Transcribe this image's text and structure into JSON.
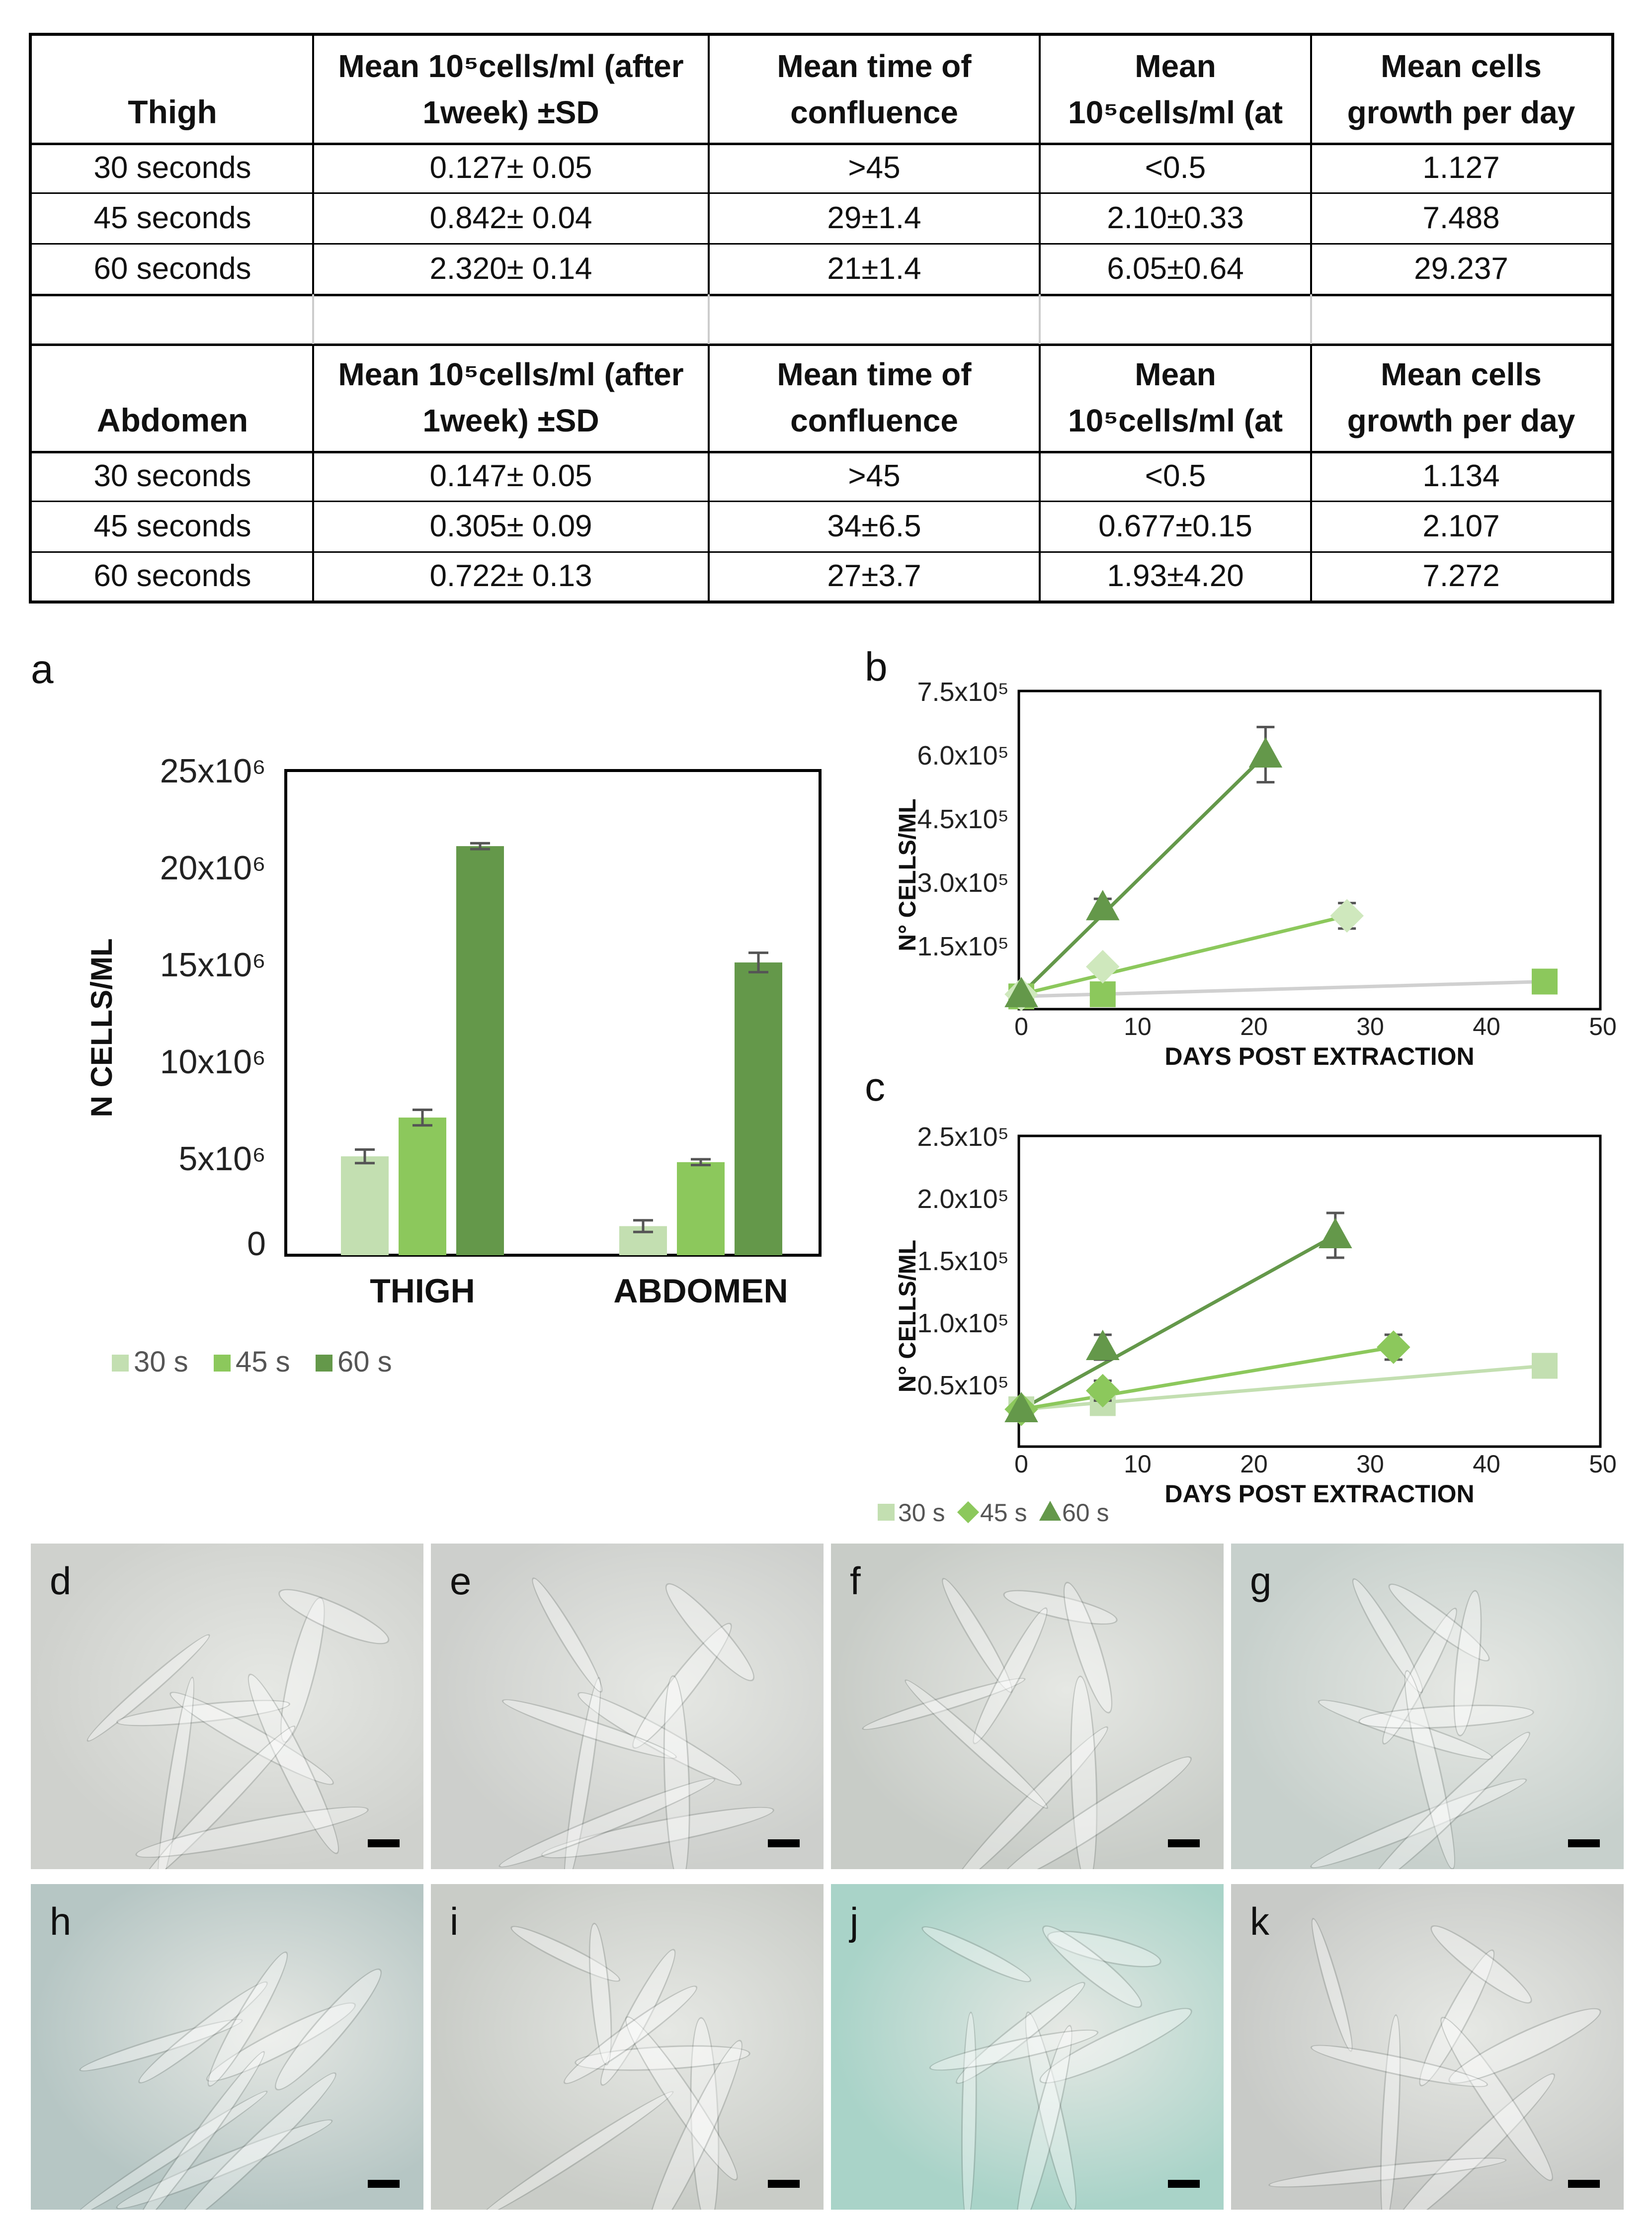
{
  "table": {
    "thigh": {
      "header": [
        "Thigh",
        "Mean 10⁵cells/ml (after\n1week) ±SD",
        "Mean time of\nconfluence",
        "Mean\n10⁵cells/ml (at",
        "Mean cells\ngrowth per day"
      ],
      "rows": [
        [
          "30 seconds",
          "0.127± 0.05",
          ">45",
          "<0.5",
          "1.127"
        ],
        [
          "45 seconds",
          "0.842± 0.04",
          "29±1.4",
          "2.10±0.33",
          "7.488"
        ],
        [
          "60 seconds",
          "2.320± 0.14",
          "21±1.4",
          "6.05±0.64",
          "29.237"
        ]
      ]
    },
    "abdomen": {
      "header": [
        "Abdomen",
        "Mean 10⁵cells/ml (after\n1week) ±SD",
        "Mean time of\nconfluence",
        "Mean\n10⁵cells/ml (at",
        "Mean cells\ngrowth per day"
      ],
      "rows": [
        [
          "30 seconds",
          "0.147± 0.05",
          ">45",
          "<0.5",
          "1.134"
        ],
        [
          "45 seconds",
          "0.305± 0.09",
          "34±6.5",
          "0.677±0.15",
          "2.107"
        ],
        [
          "60 seconds",
          "0.722± 0.13",
          "27±3.7",
          "1.93±4.20",
          "7.272"
        ]
      ]
    }
  },
  "panel_letters": {
    "a": "a",
    "b": "b",
    "c": "c"
  },
  "colors": {
    "s30": "#c3dfb1",
    "s45": "#8cc85c",
    "s60": "#64984a",
    "grey_line": "#d0d0d0"
  },
  "chart_data": [
    {
      "type": "bar",
      "panel": "a",
      "ylabel": "N CELLS/ML",
      "categories": [
        "THIGH",
        "ABDOMEN"
      ],
      "series": [
        {
          "name": "30 s",
          "values": [
            5.1,
            1.5
          ],
          "errors": [
            0.35,
            0.3
          ]
        },
        {
          "name": "45 s",
          "values": [
            7.1,
            4.8
          ],
          "errors": [
            0.4,
            0.15
          ]
        },
        {
          "name": "60 s",
          "values": [
            21.1,
            15.1
          ],
          "errors": [
            0.15,
            0.5
          ]
        }
      ],
      "ylim": [
        0,
        25
      ],
      "yticks": [
        "0",
        "5x10⁶",
        "10x10⁶",
        "15x10⁶",
        "20x10⁶",
        "25x10⁶"
      ],
      "legend": "bottom",
      "legend_entries": [
        "30 s",
        "45 s",
        "60 s"
      ]
    },
    {
      "type": "scatter",
      "panel": "b",
      "xlabel": "DAYS POST EXTRACTION",
      "ylabel": "N° CELLS/ML",
      "xlim": [
        0,
        50
      ],
      "ylim": [
        0,
        7.5
      ],
      "xticks": [
        "0",
        "10",
        "20",
        "30",
        "40",
        "50"
      ],
      "yticks": [
        "1.5x10⁵",
        "3.0x10⁵",
        "4.5x10⁵",
        "6.0x10⁵",
        "7.5x10⁵"
      ],
      "series": [
        {
          "name": "30 s",
          "marker": "square",
          "points": [
            [
              0,
              0.3
            ],
            [
              7,
              0.35
            ],
            [
              45,
              0.65
            ]
          ],
          "line": [
            [
              0,
              0.3
            ],
            [
              45,
              0.65
            ]
          ]
        },
        {
          "name": "45 s",
          "marker": "diamond",
          "points": [
            [
              0,
              0.35
            ],
            [
              7,
              1.0
            ],
            [
              28,
              2.2
            ]
          ],
          "errors": [
            0,
            0.1,
            0.3
          ],
          "line": [
            [
              0,
              0.35
            ],
            [
              28,
              2.2
            ]
          ]
        },
        {
          "name": "60 s",
          "marker": "triangle",
          "points": [
            [
              0,
              0.35
            ],
            [
              7,
              2.4
            ],
            [
              21,
              6.0
            ]
          ],
          "errors": [
            0,
            0.2,
            0.65
          ],
          "line": [
            [
              0,
              0.35
            ],
            [
              21,
              6.0
            ]
          ]
        }
      ]
    },
    {
      "type": "scatter",
      "panel": "c",
      "xlabel": "DAYS POST EXTRACTION",
      "ylabel": "N° CELLS/ML",
      "xlim": [
        0,
        50
      ],
      "ylim": [
        0,
        2.5
      ],
      "xticks": [
        "0",
        "10",
        "20",
        "30",
        "40",
        "50"
      ],
      "yticks": [
        "0.5x10⁵",
        "1.0x10⁵",
        "1.5x10⁵",
        "2.0x10⁵",
        "2.5x10⁵"
      ],
      "series": [
        {
          "name": "30 s",
          "marker": "square",
          "points": [
            [
              0,
              0.3
            ],
            [
              7,
              0.35
            ],
            [
              45,
              0.65
            ]
          ],
          "errors": [
            0,
            0.05,
            0
          ],
          "line": [
            [
              0,
              0.3
            ],
            [
              45,
              0.65
            ]
          ]
        },
        {
          "name": "45 s",
          "marker": "diamond",
          "points": [
            [
              0,
              0.3
            ],
            [
              7,
              0.45
            ],
            [
              32,
              0.8
            ]
          ],
          "errors": [
            0,
            0.08,
            0.1
          ],
          "line": [
            [
              0,
              0.3
            ],
            [
              32,
              0.8
            ]
          ]
        },
        {
          "name": "60 s",
          "marker": "triangle",
          "points": [
            [
              0,
              0.3
            ],
            [
              7,
              0.8
            ],
            [
              27,
              1.7
            ]
          ],
          "errors": [
            0,
            0.1,
            0.18
          ],
          "line": [
            [
              0,
              0.3
            ],
            [
              27,
              1.7
            ]
          ]
        }
      ],
      "legend": "bottom-left",
      "legend_entries": [
        "30 s",
        "45 s",
        "60 s"
      ]
    }
  ],
  "micrographs": [
    {
      "label": "d",
      "tint": "#cfd1cd"
    },
    {
      "label": "e",
      "tint": "#cdcfcc"
    },
    {
      "label": "f",
      "tint": "#c8ccc7"
    },
    {
      "label": "g",
      "tint": "#c7d0cc"
    },
    {
      "label": "h",
      "tint": "#b6c6c4"
    },
    {
      "label": "i",
      "tint": "#c9ccc7"
    },
    {
      "label": "j",
      "tint": "#a9d3c8"
    },
    {
      "label": "k",
      "tint": "#c8cac7"
    }
  ]
}
